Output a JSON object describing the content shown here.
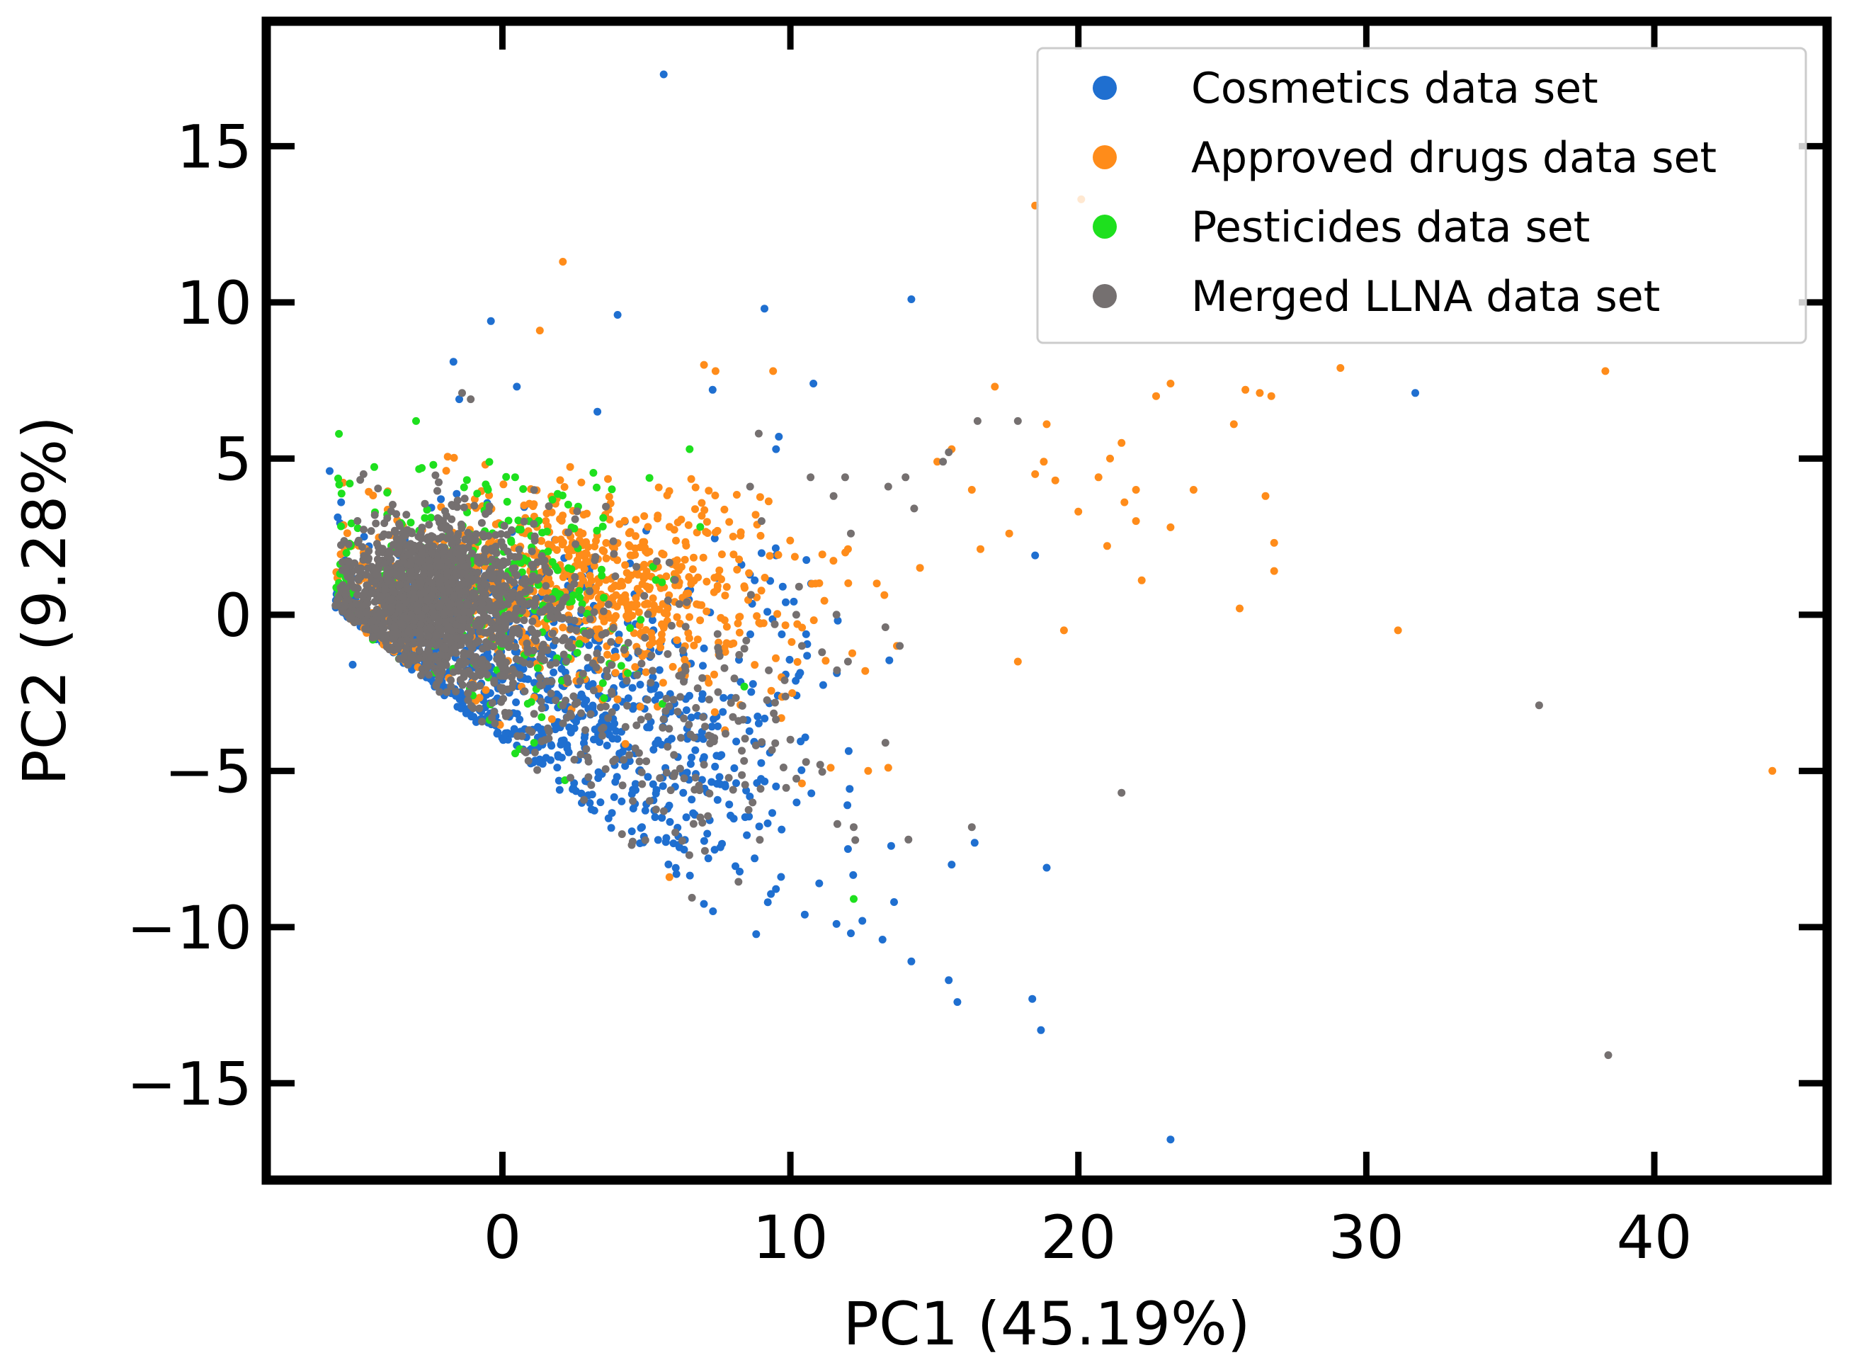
{
  "chart_data": {
    "type": "scatter",
    "title": "",
    "xlabel": "PC1 (45.19%)",
    "ylabel": "PC2 (9.28%)",
    "xlim": [
      -8.2,
      46
    ],
    "ylim": [
      -18.1,
      19
    ],
    "xticks": [
      0,
      10,
      20,
      30,
      40
    ],
    "yticks": [
      -15,
      -10,
      -5,
      0,
      5,
      10,
      15
    ],
    "xtick_labels": [
      "0",
      "10",
      "20",
      "30",
      "40"
    ],
    "ytick_labels": [
      "−15",
      "−10",
      "−5",
      "0",
      "5",
      "10",
      "15"
    ],
    "grid": false,
    "legend_position": "top-right",
    "series": [
      {
        "name": "Cosmetics data set",
        "color": "#1f6fd0",
        "core": [
          {
            "cx": -1.2,
            "cy": -1.2,
            "sx": 3.2,
            "sy": 2.0,
            "n": 480
          },
          {
            "cx": 2.5,
            "cy": -3.5,
            "sx": 2.6,
            "sy": 1.6,
            "n": 220
          },
          {
            "cx": 6.5,
            "cy": -5.5,
            "sx": 2.5,
            "sy": 1.8,
            "n": 160
          },
          {
            "cx": 9.0,
            "cy": -1.0,
            "sx": 2.0,
            "sy": 2.0,
            "n": 50
          }
        ],
        "points": [
          [
            5.6,
            17.3
          ],
          [
            14.2,
            10.1
          ],
          [
            -0.4,
            9.4
          ],
          [
            9.1,
            9.8
          ],
          [
            4.0,
            9.6
          ],
          [
            -1.7,
            8.1
          ],
          [
            -1.5,
            6.9
          ],
          [
            0.5,
            7.3
          ],
          [
            3.3,
            6.5
          ],
          [
            7.3,
            7.2
          ],
          [
            10.8,
            7.4
          ],
          [
            -6.0,
            4.6
          ],
          [
            -5.6,
            3.6
          ],
          [
            9.6,
            5.7
          ],
          [
            9.5,
            5.3
          ],
          [
            18.5,
            1.9
          ],
          [
            31.7,
            7.1
          ],
          [
            9.5,
            1.9
          ],
          [
            8.3,
            1.6
          ],
          [
            -5.2,
            -1.6
          ],
          [
            12.1,
            -10.2
          ],
          [
            13.2,
            -10.4
          ],
          [
            14.2,
            -11.1
          ],
          [
            15.5,
            -11.7
          ],
          [
            15.8,
            -12.4
          ],
          [
            18.4,
            -12.3
          ],
          [
            18.7,
            -13.3
          ],
          [
            18.9,
            -8.1
          ],
          [
            23.2,
            -16.8
          ],
          [
            12.0,
            -7.5
          ],
          [
            13.5,
            -7.4
          ],
          [
            15.6,
            -8.0
          ],
          [
            16.4,
            -7.3
          ],
          [
            11.6,
            -9.9
          ],
          [
            10.5,
            -9.6
          ],
          [
            12.5,
            -9.8
          ],
          [
            13.6,
            -9.2
          ],
          [
            11.0,
            -8.6
          ]
        ]
      },
      {
        "name": "Approved drugs data set",
        "color": "#ff8c1a",
        "core": [
          {
            "cx": 1.5,
            "cy": 1.2,
            "sx": 3.0,
            "sy": 1.7,
            "n": 520
          },
          {
            "cx": 5.5,
            "cy": 0.5,
            "sx": 2.0,
            "sy": 1.6,
            "n": 150
          },
          {
            "cx": 9.0,
            "cy": 0.0,
            "sx": 1.8,
            "sy": 1.5,
            "n": 60
          },
          {
            "cx": -4.5,
            "cy": 0.5,
            "sx": 0.9,
            "sy": 1.5,
            "n": 60
          }
        ],
        "points": [
          [
            2.1,
            11.3
          ],
          [
            1.3,
            9.1
          ],
          [
            18.5,
            13.1
          ],
          [
            20.1,
            13.3
          ],
          [
            21.1,
            5.0
          ],
          [
            20.7,
            4.4
          ],
          [
            21.6,
            3.6
          ],
          [
            22.0,
            4.0
          ],
          [
            22.7,
            7.0
          ],
          [
            23.2,
            7.4
          ],
          [
            25.4,
            6.1
          ],
          [
            25.8,
            7.2
          ],
          [
            26.3,
            7.1
          ],
          [
            26.7,
            7.0
          ],
          [
            29.1,
            7.9
          ],
          [
            38.3,
            7.8
          ],
          [
            17.1,
            7.3
          ],
          [
            15.6,
            5.3
          ],
          [
            15.1,
            4.9
          ],
          [
            12.0,
            2.1
          ],
          [
            17.6,
            2.6
          ],
          [
            18.8,
            4.9
          ],
          [
            18.9,
            6.1
          ],
          [
            19.2,
            4.3
          ],
          [
            20.0,
            3.3
          ],
          [
            21.0,
            2.2
          ],
          [
            22.2,
            1.1
          ],
          [
            23.2,
            2.8
          ],
          [
            26.5,
            3.8
          ],
          [
            26.8,
            2.3
          ],
          [
            26.8,
            1.4
          ],
          [
            25.6,
            0.2
          ],
          [
            31.1,
            -0.5
          ],
          [
            44.1,
            -5.0
          ],
          [
            17.9,
            -1.5
          ],
          [
            19.5,
            -0.5
          ],
          [
            16.3,
            4.0
          ],
          [
            16.6,
            2.1
          ],
          [
            13.0,
            1.0
          ],
          [
            14.5,
            1.5
          ],
          [
            7.0,
            8.0
          ],
          [
            7.4,
            7.8
          ],
          [
            9.4,
            7.8
          ],
          [
            11.4,
            -4.9
          ],
          [
            12.7,
            -5.0
          ],
          [
            13.4,
            -4.9
          ],
          [
            5.8,
            -8.4
          ],
          [
            10.4,
            -5.4
          ],
          [
            12.6,
            -1.8
          ],
          [
            13.7,
            -1.0
          ],
          [
            18.5,
            4.5
          ],
          [
            21.5,
            5.5
          ],
          [
            24.0,
            4.0
          ],
          [
            22.0,
            3.0
          ]
        ]
      },
      {
        "name": "Pesticides data set",
        "color": "#1ee01e",
        "core": [
          {
            "cx": -1.5,
            "cy": 1.2,
            "sx": 2.6,
            "sy": 1.6,
            "n": 200
          },
          {
            "cx": 2.0,
            "cy": 0.5,
            "sx": 2.0,
            "sy": 2.0,
            "n": 90
          }
        ],
        "points": [
          [
            -3.0,
            6.2
          ],
          [
            -5.3,
            4.2
          ],
          [
            -2.8,
            4.7
          ],
          [
            -2.4,
            4.8
          ],
          [
            -0.5,
            4.0
          ],
          [
            6.5,
            5.3
          ],
          [
            12.2,
            -9.1
          ],
          [
            8.4,
            -2.3
          ],
          [
            -4.0,
            3.2
          ],
          [
            -4.8,
            1.8
          ],
          [
            -5.2,
            0.8
          ],
          [
            -4.5,
            -0.8
          ],
          [
            0.6,
            -4.3
          ],
          [
            1.1,
            -4.1
          ],
          [
            3.5,
            3.1
          ]
        ]
      },
      {
        "name": "Merged LLNA data set",
        "color": "#757070",
        "core": [
          {
            "cx": -2.8,
            "cy": 0.6,
            "sx": 1.4,
            "sy": 1.2,
            "n": 1100
          },
          {
            "cx": -0.8,
            "cy": -0.2,
            "sx": 2.2,
            "sy": 1.6,
            "n": 500
          },
          {
            "cx": 4.0,
            "cy": -2.5,
            "sx": 2.5,
            "sy": 2.0,
            "n": 130
          },
          {
            "cx": 7.0,
            "cy": -4.5,
            "sx": 2.0,
            "sy": 1.8,
            "n": 90
          }
        ],
        "points": [
          [
            -1.1,
            6.9
          ],
          [
            -1.4,
            7.1
          ],
          [
            8.9,
            5.8
          ],
          [
            10.7,
            4.4
          ],
          [
            11.9,
            4.4
          ],
          [
            13.4,
            4.1
          ],
          [
            14.0,
            4.4
          ],
          [
            15.3,
            4.9
          ],
          [
            16.5,
            6.2
          ],
          [
            17.9,
            6.2
          ],
          [
            11.5,
            3.8
          ],
          [
            12.1,
            2.6
          ],
          [
            8.6,
            4.1
          ],
          [
            9.0,
            3.0
          ],
          [
            10.3,
            0.9
          ],
          [
            11.6,
            0.0
          ],
          [
            13.3,
            -0.4
          ],
          [
            13.8,
            -1.0
          ],
          [
            12.0,
            -1.5
          ],
          [
            11.1,
            -1.2
          ],
          [
            9.8,
            -2.1
          ],
          [
            10.0,
            -4.0
          ],
          [
            8.2,
            -3.4
          ],
          [
            7.0,
            -4.8
          ],
          [
            10.4,
            -1.0
          ],
          [
            21.5,
            -5.7
          ],
          [
            36.0,
            -2.9
          ],
          [
            38.4,
            -14.1
          ],
          [
            16.3,
            -6.8
          ],
          [
            14.1,
            -7.2
          ],
          [
            12.2,
            -6.8
          ],
          [
            13.3,
            -4.1
          ],
          [
            14.3,
            3.4
          ],
          [
            15.5,
            5.2
          ]
        ]
      }
    ]
  }
}
